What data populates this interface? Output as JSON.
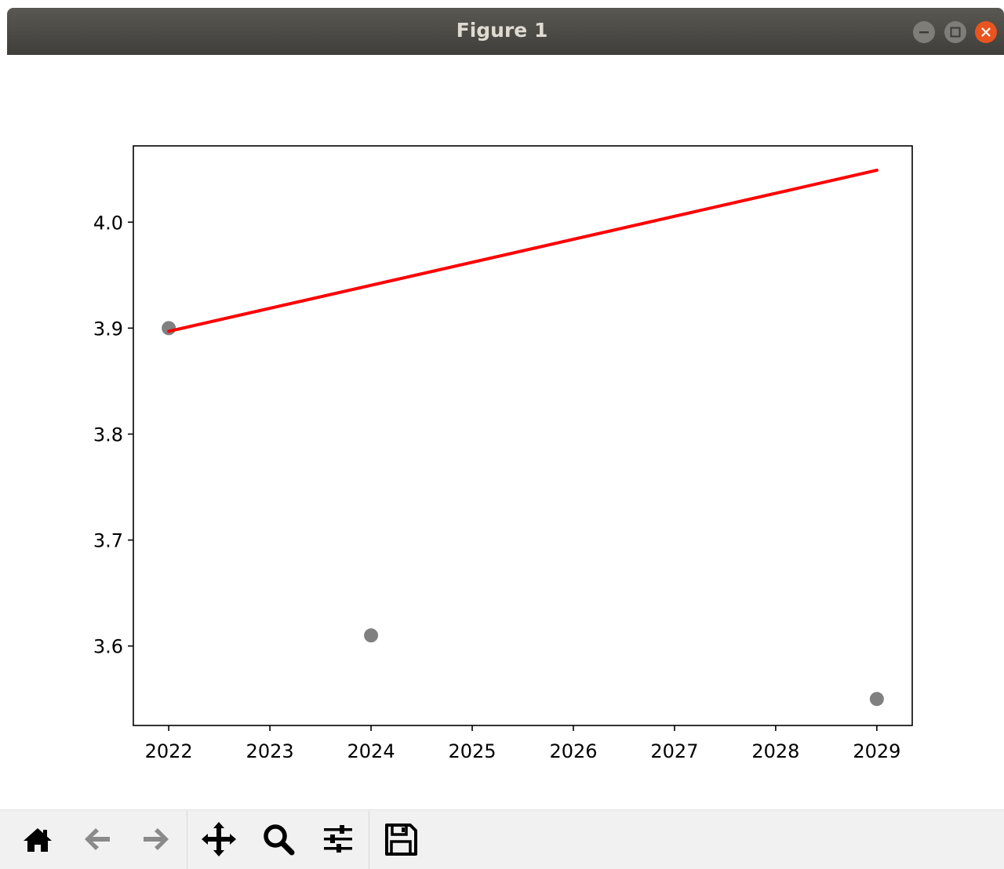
{
  "window": {
    "title": "Figure 1"
  },
  "toolbar": {
    "tools": [
      {
        "name": "home",
        "icon": "home-icon"
      },
      {
        "name": "back",
        "icon": "arrow-left-icon"
      },
      {
        "name": "forward",
        "icon": "arrow-right-icon"
      },
      {
        "name": "pan",
        "icon": "move-icon"
      },
      {
        "name": "zoom",
        "icon": "magnifier-icon"
      },
      {
        "name": "configure-subplots",
        "icon": "sliders-icon"
      },
      {
        "name": "save",
        "icon": "floppy-disk-icon"
      }
    ]
  },
  "colors": {
    "line": "#ff0000",
    "points": "#808080",
    "titlebar": "#45443f",
    "close_button": "#e95420"
  },
  "chart_data": {
    "type": "scatter",
    "title": "",
    "xlabel": "",
    "ylabel": "",
    "xlim": [
      2021.65,
      2029.35
    ],
    "ylim": [
      3.525,
      4.072
    ],
    "x_ticks": [
      2022,
      2023,
      2024,
      2025,
      2026,
      2027,
      2028,
      2029
    ],
    "x_tick_labels": [
      "2022",
      "2023",
      "2024",
      "2025",
      "2026",
      "2027",
      "2028",
      "2029"
    ],
    "y_ticks": [
      3.6,
      3.7,
      3.8,
      3.9,
      4.0
    ],
    "y_tick_labels": [
      "3.6",
      "3.7",
      "3.8",
      "3.9",
      "4.0"
    ],
    "grid": false,
    "series": [
      {
        "kind": "scatter",
        "color": "#808080",
        "x": [
          2022,
          2024,
          2029
        ],
        "y": [
          3.9,
          3.61,
          3.55
        ]
      },
      {
        "kind": "line",
        "color": "#ff0000",
        "x": [
          2022,
          2029
        ],
        "y": [
          3.897,
          4.049
        ]
      }
    ]
  }
}
